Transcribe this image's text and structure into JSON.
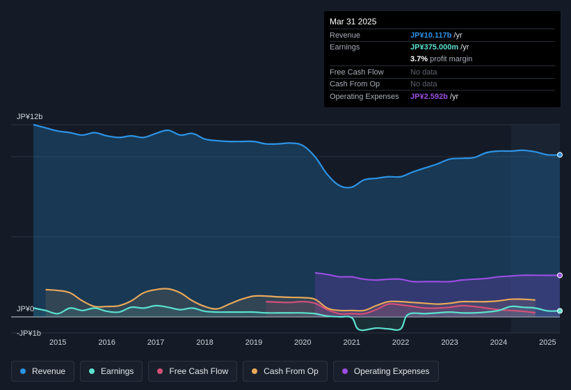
{
  "chart_data": {
    "type": "area",
    "x_range": [
      2014.5,
      2025.25
    ],
    "y_range": [
      -1.0,
      12.0
    ],
    "y_unit": "JP¥b",
    "y_tick_labels": [
      {
        "value": 12,
        "label": "JP¥12b"
      },
      {
        "value": 0,
        "label": "JP¥0"
      },
      {
        "value": -1,
        "label": "-JP¥1b"
      }
    ],
    "x_tick_labels": [
      "2015",
      "2016",
      "2017",
      "2018",
      "2019",
      "2020",
      "2021",
      "2022",
      "2023",
      "2024",
      "2025"
    ],
    "series": [
      {
        "name": "Revenue",
        "color": "#2d93e5",
        "x": [
          2014.5,
          2014.75,
          2015.0,
          2015.25,
          2015.5,
          2015.75,
          2016.0,
          2016.25,
          2016.5,
          2016.75,
          2017.0,
          2017.25,
          2017.5,
          2017.75,
          2018.0,
          2018.25,
          2018.5,
          2018.75,
          2019.0,
          2019.25,
          2019.5,
          2019.75,
          2020.0,
          2020.25,
          2020.5,
          2020.75,
          2021.0,
          2021.25,
          2021.5,
          2021.75,
          2022.0,
          2022.25,
          2022.5,
          2022.75,
          2023.0,
          2023.25,
          2023.5,
          2023.75,
          2024.0,
          2024.25,
          2024.5,
          2024.75,
          2025.0,
          2025.25
        ],
        "values": [
          12.0,
          11.8,
          11.6,
          11.5,
          11.35,
          11.5,
          11.3,
          11.2,
          11.3,
          11.2,
          11.45,
          11.65,
          11.35,
          11.45,
          11.1,
          11.0,
          10.95,
          10.95,
          10.95,
          10.8,
          10.8,
          10.85,
          10.7,
          10.0,
          8.9,
          8.2,
          8.1,
          8.55,
          8.65,
          8.75,
          8.75,
          9.05,
          9.3,
          9.55,
          9.85,
          9.9,
          9.95,
          10.25,
          10.35,
          10.35,
          10.4,
          10.3,
          10.117,
          10.117
        ]
      },
      {
        "name": "Earnings",
        "color": "#5ce1d0",
        "x": [
          2014.5,
          2014.75,
          2015.0,
          2015.25,
          2015.5,
          2015.75,
          2016.0,
          2016.25,
          2016.5,
          2016.75,
          2017.0,
          2017.25,
          2017.5,
          2017.75,
          2018.0,
          2018.25,
          2018.5,
          2018.75,
          2019.0,
          2019.25,
          2019.5,
          2019.75,
          2020.0,
          2020.25,
          2020.5,
          2020.75,
          2021.0,
          2021.15,
          2021.5,
          2021.75,
          2022.0,
          2022.15,
          2022.5,
          2022.75,
          2023.0,
          2023.25,
          2023.5,
          2023.75,
          2024.0,
          2024.25,
          2024.5,
          2024.75,
          2025.0,
          2025.25
        ],
        "values": [
          0.55,
          0.4,
          0.2,
          0.55,
          0.4,
          0.55,
          0.35,
          0.3,
          0.6,
          0.55,
          0.7,
          0.6,
          0.45,
          0.55,
          0.35,
          0.3,
          0.3,
          0.3,
          0.3,
          0.25,
          0.25,
          0.25,
          0.25,
          0.2,
          0.05,
          0.0,
          -0.05,
          -0.8,
          -0.7,
          -0.75,
          -0.75,
          0.15,
          0.2,
          0.25,
          0.3,
          0.25,
          0.25,
          0.3,
          0.4,
          0.65,
          0.6,
          0.55,
          0.375,
          0.375
        ]
      },
      {
        "name": "Free Cash Flow",
        "color": "#d4507a",
        "x": [
          2019.25,
          2019.5,
          2019.75,
          2020.0,
          2020.25,
          2020.5,
          2020.75,
          2021.0,
          2021.25,
          2021.5,
          2021.75,
          2022.0,
          2022.25,
          2022.5,
          2022.75,
          2023.0,
          2023.25,
          2023.5,
          2023.75,
          2024.0,
          2024.25,
          2024.5,
          2024.75
        ],
        "values": [
          0.95,
          0.92,
          0.9,
          0.95,
          0.85,
          0.45,
          0.2,
          0.2,
          0.2,
          0.45,
          0.8,
          0.75,
          0.65,
          0.55,
          0.55,
          0.6,
          0.7,
          0.65,
          0.55,
          0.45,
          0.4,
          0.35,
          0.25
        ]
      },
      {
        "name": "Cash From Op",
        "color": "#e8a85a",
        "x": [
          2014.75,
          2015.0,
          2015.25,
          2015.5,
          2015.75,
          2016.0,
          2016.25,
          2016.5,
          2016.75,
          2017.0,
          2017.25,
          2017.5,
          2017.75,
          2018.0,
          2018.25,
          2018.5,
          2018.75,
          2019.0,
          2019.25,
          2019.5,
          2019.75,
          2020.0,
          2020.25,
          2020.5,
          2020.75,
          2021.0,
          2021.25,
          2021.5,
          2021.75,
          2022.0,
          2022.25,
          2022.5,
          2022.75,
          2023.0,
          2023.25,
          2023.5,
          2023.75,
          2024.0,
          2024.25,
          2024.5,
          2024.75
        ],
        "values": [
          1.7,
          1.65,
          1.5,
          1.0,
          0.65,
          0.65,
          0.7,
          1.0,
          1.5,
          1.7,
          1.75,
          1.5,
          1.0,
          0.65,
          0.5,
          0.8,
          1.1,
          1.3,
          1.3,
          1.25,
          1.22,
          1.2,
          1.1,
          0.55,
          0.4,
          0.4,
          0.4,
          0.7,
          0.95,
          0.95,
          0.9,
          0.85,
          0.8,
          0.85,
          0.95,
          0.95,
          0.95,
          1.0,
          1.1,
          1.1,
          1.05
        ]
      },
      {
        "name": "Operating Expenses",
        "color": "#9a4de0",
        "x": [
          2020.25,
          2020.5,
          2020.75,
          2021.0,
          2021.25,
          2021.5,
          2021.75,
          2022.0,
          2022.25,
          2022.5,
          2022.75,
          2023.0,
          2023.25,
          2023.5,
          2023.75,
          2024.0,
          2024.25,
          2024.5,
          2024.75,
          2025.0,
          2025.25
        ],
        "values": [
          2.75,
          2.65,
          2.5,
          2.5,
          2.35,
          2.3,
          2.35,
          2.35,
          2.2,
          2.2,
          2.2,
          2.2,
          2.3,
          2.35,
          2.4,
          2.5,
          2.55,
          2.6,
          2.6,
          2.592,
          2.592
        ]
      }
    ],
    "highlight_range": [
      2024.25,
      2025.25
    ]
  },
  "tooltip": {
    "date": "Mar 31 2025",
    "rows": [
      {
        "label": "Revenue",
        "value": "JP¥10.117b",
        "suffix": " /yr",
        "color": "#2d93e5"
      },
      {
        "label": "Earnings",
        "value": "JP¥375.000m",
        "suffix": " /yr",
        "color": "#5ce1d0"
      },
      {
        "label": "Free Cash Flow",
        "value": "No data",
        "suffix": "",
        "color": "#5f6570"
      },
      {
        "label": "Cash From Op",
        "value": "No data",
        "suffix": "",
        "color": "#5f6570"
      },
      {
        "label": "Operating Expenses",
        "value": "JP¥2.592b",
        "suffix": " /yr",
        "color": "#9a4de0"
      }
    ],
    "margin_value": "3.7%",
    "margin_label": " profit margin"
  },
  "legend": [
    {
      "label": "Revenue",
      "color": "#2d93e5"
    },
    {
      "label": "Earnings",
      "color": "#5ce1d0"
    },
    {
      "label": "Free Cash Flow",
      "color": "#d4507a"
    },
    {
      "label": "Cash From Op",
      "color": "#e8a85a"
    },
    {
      "label": "Operating Expenses",
      "color": "#9a4de0"
    }
  ]
}
